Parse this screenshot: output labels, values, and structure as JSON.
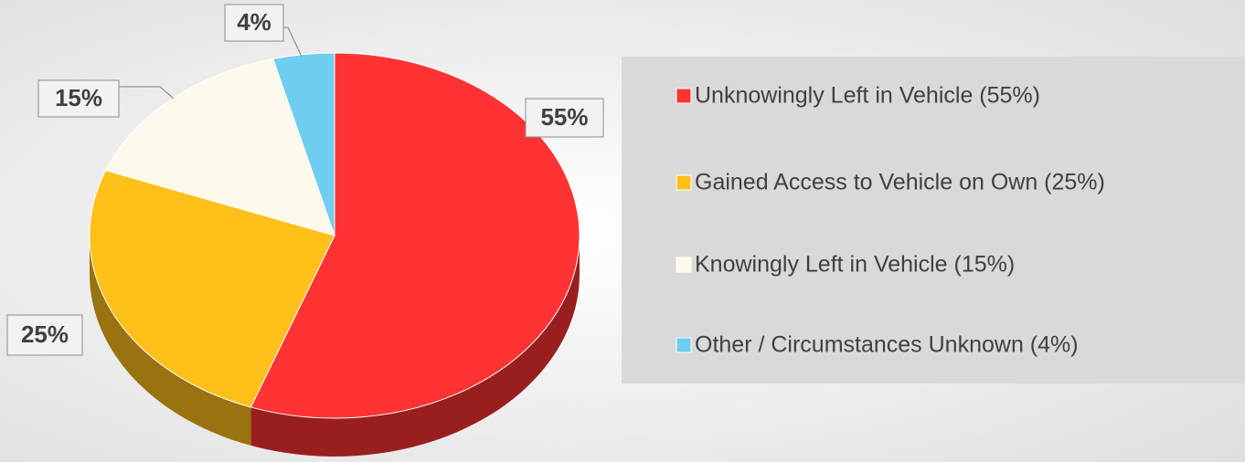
{
  "chart_data": {
    "type": "pie",
    "categories": [
      "Unknowingly Left in Vehicle (55%)",
      "Gained Access to Vehicle on Own (25%)",
      "Knowingly Left in Vehicle (15%)",
      "Other / Circumstances Unknown (4%)"
    ],
    "values": [
      55,
      25,
      15,
      4
    ],
    "value_labels": [
      "55%",
      "25%",
      "15%",
      "4%"
    ],
    "colors": [
      "#ff3333",
      "#ffc019",
      "#fefaeb",
      "#6fcdef"
    ]
  }
}
